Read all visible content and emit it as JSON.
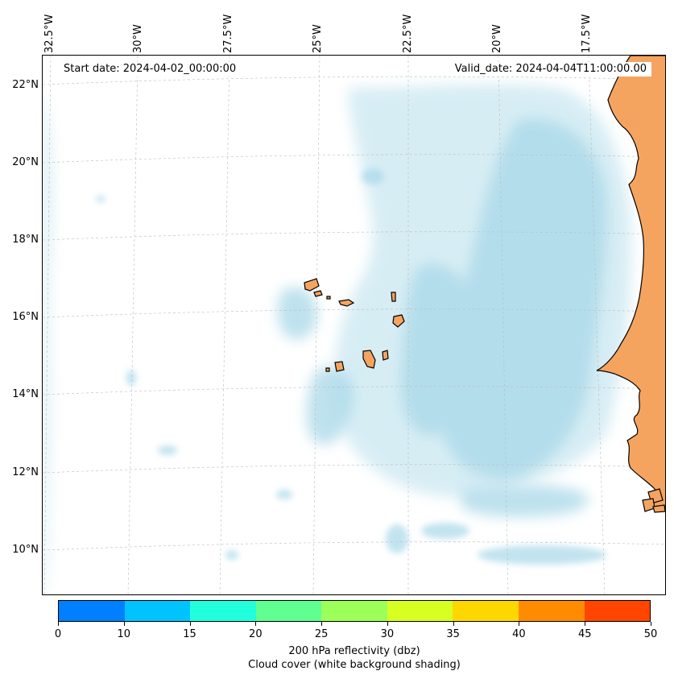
{
  "annotations": {
    "start_date": "Start date: 2024-04-02_00:00:00",
    "valid_date": "Valid_date: 2024-04-04T11:00:00.00"
  },
  "longitude_labels": [
    "32.5°W",
    "30°W",
    "27.5°W",
    "25°W",
    "22.5°W",
    "20°W",
    "17.5°W"
  ],
  "latitude_labels": [
    "22°N",
    "20°N",
    "18°N",
    "16°N",
    "14°N",
    "12°N",
    "10°N"
  ],
  "colorbar": {
    "ticks": [
      "0",
      "10",
      "15",
      "20",
      "25",
      "30",
      "35",
      "40",
      "45",
      "50"
    ],
    "colors": [
      "#0080ff",
      "#00c4ff",
      "#22ffdd",
      "#60ff90",
      "#9cff5a",
      "#d8ff22",
      "#ffd700",
      "#ff8c00",
      "#ff4500"
    ],
    "label_line1": "200 hPa reflectivity (dbz)",
    "label_line2": "Cloud cover (white background shading)"
  },
  "colors": {
    "land": "#f5a460",
    "cloud": "#a8d8e8",
    "ocean": "#ffffff",
    "gridline": "#bbbbbb"
  }
}
